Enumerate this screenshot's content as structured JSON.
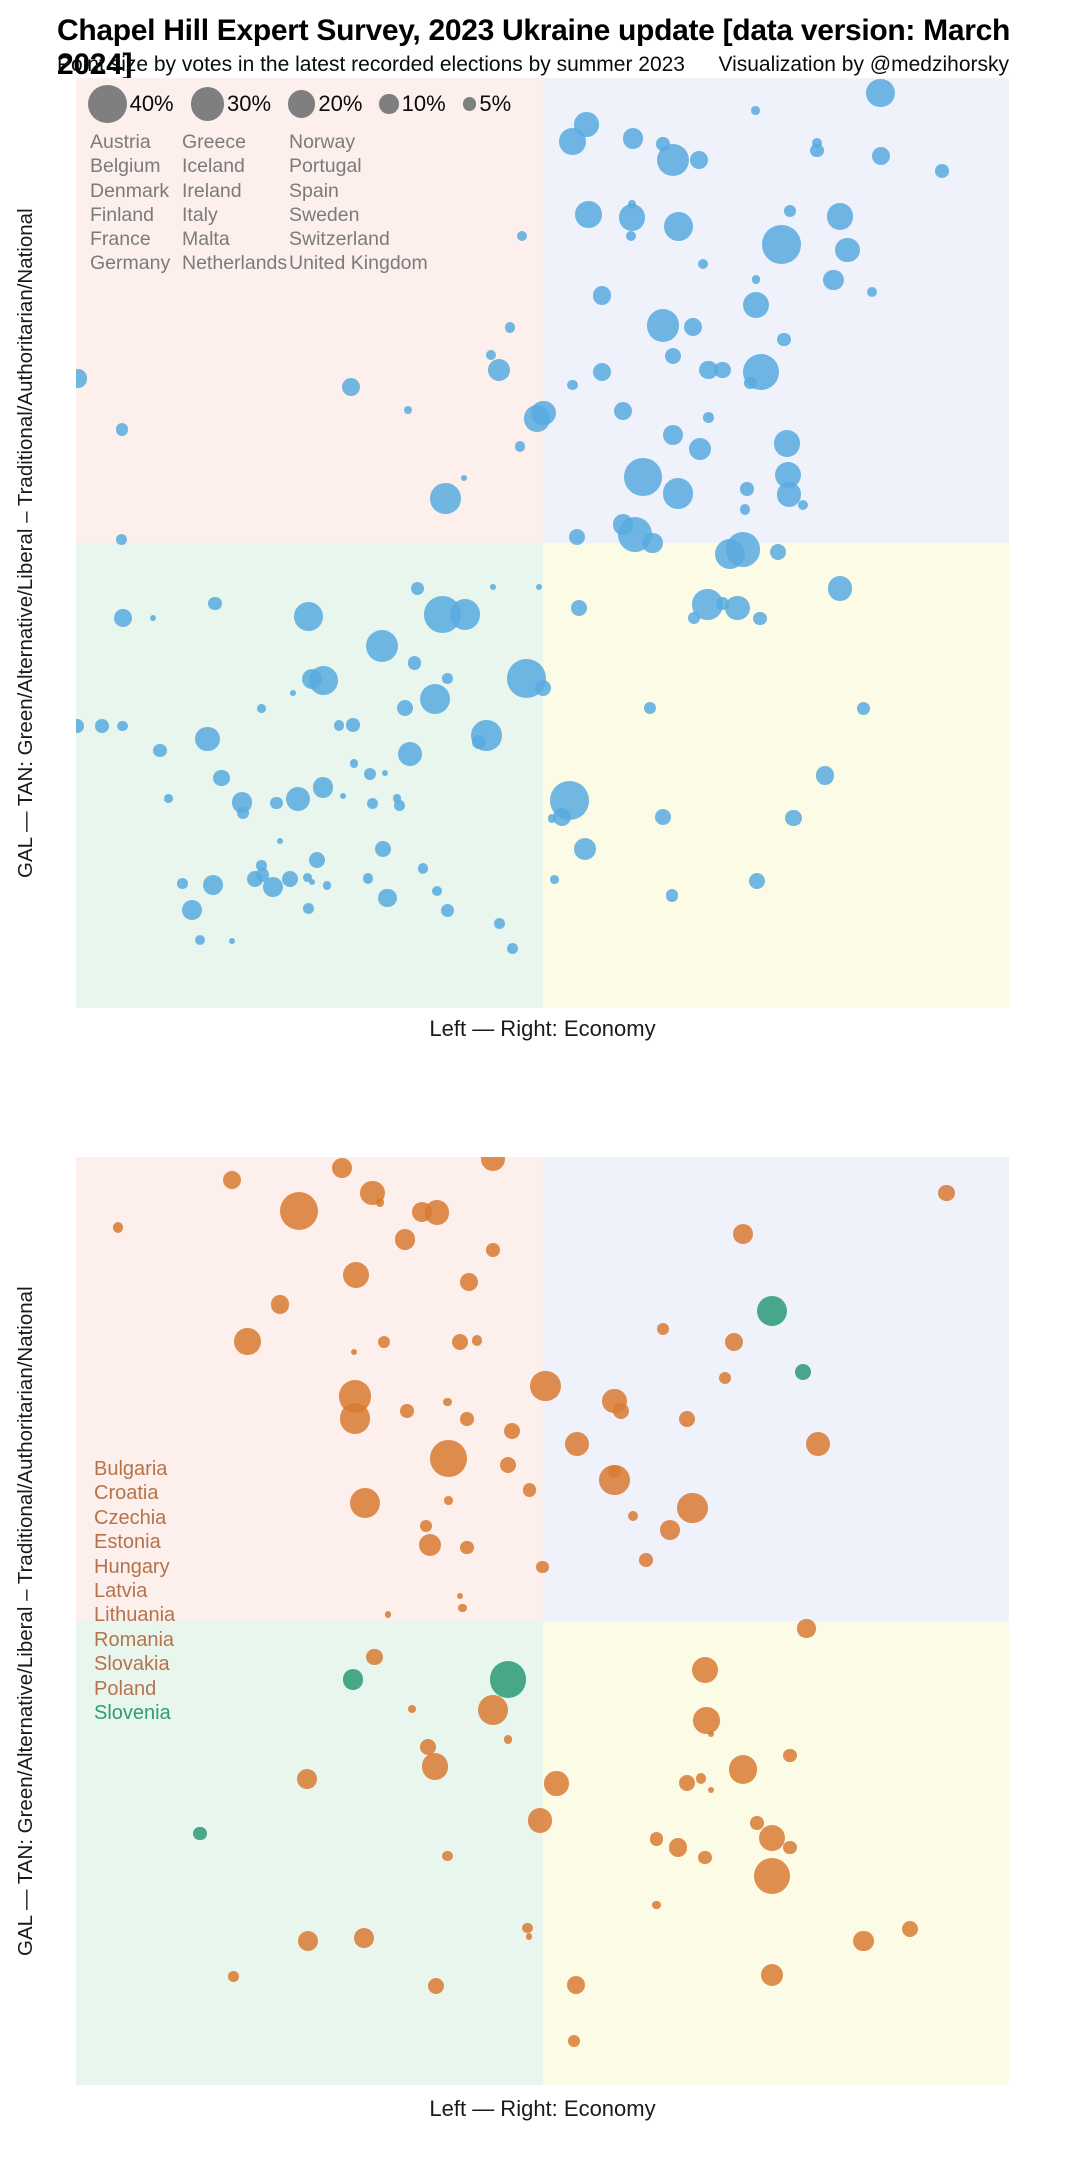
{
  "header": {
    "title": "Chapel Hill Expert Survey, 2023 Ukraine update [data version: March 2024]",
    "subtitle": "Point size by votes in the latest recorded elections by summer 2023",
    "credit": "Visualization by @medzihorsky"
  },
  "axes": {
    "x_label": "Left — Right: Economy",
    "y_label": "GAL — TAN: Green/Alternative/Liberal – Traditional/Authoritarian/National",
    "x_range": [
      0,
      10
    ],
    "y_range": [
      0,
      10
    ]
  },
  "size_legend": {
    "items": [
      {
        "label": "40%",
        "value": 40
      },
      {
        "label": "30%",
        "value": 30
      },
      {
        "label": "20%",
        "value": 20
      },
      {
        "label": "10%",
        "value": 10
      },
      {
        "label": "5%",
        "value": 5
      }
    ]
  },
  "quadrant_colors": {
    "top_left": "#fcefec",
    "top_right": "#eff1fb",
    "bottom_left": "#e9f6ee",
    "bottom_right": "#fbfbe6"
  },
  "chart_data": [
    {
      "type": "scatter",
      "panel": "top",
      "xlabel": "Left — Right: Economy",
      "ylabel": "GAL — TAN: Green/Alternative/Liberal – Traditional/Authoritarian/National",
      "x_range": [
        0,
        10
      ],
      "y_range": [
        0,
        10
      ],
      "size_meaning": "vote share percent in latest national election",
      "point_color": "#58aadf",
      "countries": [
        "Austria",
        "Belgium",
        "Denmark",
        "Finland",
        "France",
        "Germany",
        "Greece",
        "Iceland",
        "Ireland",
        "Italy",
        "Malta",
        "Netherlands",
        "Norway",
        "Portugal",
        "Spain",
        "Sweden",
        "Switzerland",
        "United Kingdom"
      ],
      "points": [
        [
          0.02,
          6.77,
          9
        ],
        [
          0.49,
          6.22,
          4
        ],
        [
          4.78,
          8.3,
          3
        ],
        [
          4.65,
          7.32,
          3
        ],
        [
          4.45,
          7.02,
          3
        ],
        [
          4.53,
          6.86,
          13
        ],
        [
          2.95,
          6.68,
          9
        ],
        [
          3.56,
          6.43,
          2
        ],
        [
          4.94,
          6.34,
          19
        ],
        [
          4.76,
          6.04,
          3
        ],
        [
          4.16,
          5.7,
          1
        ],
        [
          3.96,
          5.48,
          25
        ],
        [
          0.49,
          5.04,
          3
        ],
        [
          8.62,
          9.84,
          22
        ],
        [
          7.28,
          9.65,
          2
        ],
        [
          5.47,
          9.5,
          16
        ],
        [
          5.32,
          9.32,
          19
        ],
        [
          5.97,
          9.35,
          11
        ],
        [
          6.29,
          9.29,
          5
        ],
        [
          6.4,
          9.12,
          28
        ],
        [
          6.68,
          9.12,
          9
        ],
        [
          7.94,
          9.3,
          3
        ],
        [
          7.94,
          9.22,
          5
        ],
        [
          8.63,
          9.16,
          9
        ],
        [
          9.28,
          9.0,
          5
        ],
        [
          5.49,
          8.53,
          19
        ],
        [
          5.96,
          8.64,
          2
        ],
        [
          5.96,
          8.5,
          19
        ],
        [
          5.95,
          8.3,
          3
        ],
        [
          6.46,
          8.4,
          22
        ],
        [
          7.65,
          8.57,
          4
        ],
        [
          8.19,
          8.51,
          19
        ],
        [
          7.56,
          8.21,
          40
        ],
        [
          8.27,
          8.15,
          16
        ],
        [
          6.72,
          8.0,
          3
        ],
        [
          7.29,
          7.83,
          2
        ],
        [
          8.12,
          7.83,
          11
        ],
        [
          8.53,
          7.7,
          3
        ],
        [
          5.64,
          7.66,
          9
        ],
        [
          7.29,
          7.56,
          19
        ],
        [
          6.29,
          7.34,
          28
        ],
        [
          6.61,
          7.32,
          9
        ],
        [
          7.59,
          7.19,
          5
        ],
        [
          6.4,
          7.01,
          7
        ],
        [
          6.78,
          6.86,
          9
        ],
        [
          6.93,
          6.86,
          7
        ],
        [
          7.34,
          6.84,
          36
        ],
        [
          7.23,
          6.72,
          4
        ],
        [
          5.64,
          6.84,
          9
        ],
        [
          5.32,
          6.7,
          3
        ],
        [
          5.01,
          6.4,
          16
        ],
        [
          5.86,
          6.42,
          9
        ],
        [
          6.78,
          6.35,
          3
        ],
        [
          6.4,
          6.16,
          11
        ],
        [
          6.69,
          6.01,
          13
        ],
        [
          7.62,
          6.07,
          19
        ],
        [
          7.63,
          5.73,
          19
        ],
        [
          7.64,
          5.52,
          16
        ],
        [
          7.79,
          5.41,
          3
        ],
        [
          7.19,
          5.58,
          5
        ],
        [
          7.17,
          5.36,
          3
        ],
        [
          6.08,
          5.71,
          38
        ],
        [
          6.45,
          5.53,
          25
        ],
        [
          5.99,
          5.09,
          32
        ],
        [
          5.86,
          5.2,
          11
        ],
        [
          5.37,
          5.06,
          7
        ],
        [
          6.18,
          5.0,
          11
        ],
        [
          7.01,
          4.88,
          25
        ],
        [
          7.15,
          4.93,
          32
        ],
        [
          7.52,
          4.9,
          7
        ],
        [
          1.49,
          4.35,
          5
        ],
        [
          0.5,
          4.19,
          9
        ],
        [
          0.83,
          4.19,
          1
        ],
        [
          2.49,
          4.21,
          22
        ],
        [
          3.66,
          4.51,
          5
        ],
        [
          4.47,
          4.53,
          1
        ],
        [
          4.96,
          4.53,
          1
        ],
        [
          3.93,
          4.23,
          36
        ],
        [
          4.17,
          4.23,
          25
        ],
        [
          3.28,
          3.89,
          28
        ],
        [
          3.63,
          3.71,
          5
        ],
        [
          3.98,
          3.54,
          3
        ],
        [
          2.53,
          3.54,
          11
        ],
        [
          2.65,
          3.52,
          22
        ],
        [
          2.33,
          3.39,
          1
        ],
        [
          3.85,
          3.32,
          25
        ],
        [
          3.53,
          3.23,
          7
        ],
        [
          4.83,
          3.54,
          40
        ],
        [
          5.01,
          3.44,
          7
        ],
        [
          1.99,
          3.22,
          2
        ],
        [
          0.01,
          3.03,
          5
        ],
        [
          0.28,
          3.03,
          5
        ],
        [
          0.5,
          3.03,
          3
        ],
        [
          1.41,
          2.89,
          16
        ],
        [
          2.82,
          3.04,
          3
        ],
        [
          2.97,
          3.04,
          5
        ],
        [
          4.4,
          2.93,
          25
        ],
        [
          4.32,
          2.86,
          5
        ],
        [
          3.58,
          2.73,
          16
        ],
        [
          0.9,
          2.77,
          5
        ],
        [
          1.56,
          2.47,
          7
        ],
        [
          2.98,
          2.63,
          2
        ],
        [
          3.15,
          2.52,
          4
        ],
        [
          3.31,
          2.53,
          1
        ],
        [
          0.99,
          2.25,
          2
        ],
        [
          1.78,
          2.21,
          11
        ],
        [
          1.79,
          2.1,
          4
        ],
        [
          2.15,
          2.2,
          4
        ],
        [
          2.38,
          2.25,
          16
        ],
        [
          2.65,
          2.37,
          11
        ],
        [
          2.86,
          2.28,
          1
        ],
        [
          3.18,
          2.2,
          3
        ],
        [
          3.44,
          2.25,
          2
        ],
        [
          3.47,
          2.18,
          3
        ],
        [
          2.19,
          1.8,
          1
        ],
        [
          3.29,
          1.71,
          7
        ],
        [
          2.58,
          1.59,
          7
        ],
        [
          1.99,
          1.53,
          3
        ],
        [
          2.0,
          1.43,
          5
        ],
        [
          1.92,
          1.39,
          7
        ],
        [
          2.11,
          1.3,
          11
        ],
        [
          2.29,
          1.39,
          7
        ],
        [
          2.48,
          1.4,
          2
        ],
        [
          2.53,
          1.35,
          1
        ],
        [
          2.69,
          1.32,
          2
        ],
        [
          1.14,
          1.34,
          3
        ],
        [
          1.47,
          1.32,
          11
        ],
        [
          1.24,
          1.05,
          11
        ],
        [
          2.49,
          1.07,
          3
        ],
        [
          3.13,
          1.39,
          3
        ],
        [
          3.34,
          1.18,
          9
        ],
        [
          3.72,
          1.5,
          3
        ],
        [
          3.87,
          1.26,
          3
        ],
        [
          3.98,
          1.05,
          5
        ],
        [
          1.33,
          0.73,
          3
        ],
        [
          1.67,
          0.72,
          1
        ],
        [
          4.54,
          0.91,
          3
        ],
        [
          4.68,
          0.64,
          3
        ],
        [
          5.39,
          4.3,
          7
        ],
        [
          6.77,
          4.34,
          25
        ],
        [
          6.93,
          4.35,
          5
        ],
        [
          7.09,
          4.3,
          16
        ],
        [
          7.33,
          4.19,
          5
        ],
        [
          6.62,
          4.19,
          4
        ],
        [
          8.19,
          4.51,
          16
        ],
        [
          6.15,
          3.23,
          4
        ],
        [
          8.44,
          3.22,
          5
        ],
        [
          8.03,
          2.5,
          9
        ],
        [
          5.29,
          2.23,
          40
        ],
        [
          5.21,
          2.05,
          9
        ],
        [
          5.1,
          2.04,
          2
        ],
        [
          6.29,
          2.05,
          7
        ],
        [
          7.69,
          2.04,
          7
        ],
        [
          5.46,
          1.71,
          13
        ],
        [
          5.13,
          1.38,
          2
        ],
        [
          7.3,
          1.37,
          7
        ],
        [
          6.39,
          1.21,
          4
        ]
      ]
    },
    {
      "type": "scatter",
      "panel": "bottom",
      "xlabel": "Left — Right: Economy",
      "ylabel": "GAL — TAN: Green/Alternative/Liberal – Traditional/Authoritarian/National",
      "x_range": [
        0,
        10
      ],
      "y_range": [
        0,
        10
      ],
      "size_meaning": "vote share percent in latest national election",
      "point_color_orange": "#d87a33",
      "point_color_green": "#2a9a77",
      "countries": [
        {
          "label": "Bulgaria",
          "group": "orange"
        },
        {
          "label": "Croatia",
          "group": "orange"
        },
        {
          "label": "Czechia",
          "group": "orange"
        },
        {
          "label": "Estonia",
          "group": "orange"
        },
        {
          "label": "Hungary",
          "group": "orange"
        },
        {
          "label": "Latvia",
          "group": "orange"
        },
        {
          "label": "Lithuania",
          "group": "orange"
        },
        {
          "label": "Romania",
          "group": "orange"
        },
        {
          "label": "Slovakia",
          "group": "orange"
        },
        {
          "label": "Poland",
          "group": "orange"
        },
        {
          "label": "Slovenia",
          "group": "green"
        }
      ],
      "points_orange": [
        [
          4.47,
          9.98,
          16
        ],
        [
          2.85,
          9.88,
          11
        ],
        [
          1.67,
          9.75,
          9
        ],
        [
          2.39,
          9.42,
          40
        ],
        [
          3.18,
          9.61,
          16
        ],
        [
          3.26,
          9.51,
          2
        ],
        [
          3.71,
          9.41,
          11
        ],
        [
          3.87,
          9.4,
          16
        ],
        [
          0.45,
          9.24,
          3
        ],
        [
          3.53,
          9.11,
          11
        ],
        [
          4.47,
          9.0,
          5
        ],
        [
          3.0,
          8.73,
          19
        ],
        [
          4.21,
          8.65,
          9
        ],
        [
          2.19,
          8.41,
          9
        ],
        [
          1.84,
          8.01,
          19
        ],
        [
          4.12,
          8.01,
          7
        ],
        [
          4.3,
          8.02,
          3
        ],
        [
          3.3,
          8.01,
          4
        ],
        [
          2.98,
          7.9,
          1
        ],
        [
          2.99,
          7.42,
          28
        ],
        [
          2.99,
          7.18,
          25
        ],
        [
          3.98,
          7.36,
          2
        ],
        [
          3.55,
          7.26,
          5
        ],
        [
          4.19,
          7.18,
          5
        ],
        [
          4.67,
          7.05,
          7
        ],
        [
          3.99,
          6.75,
          36
        ],
        [
          4.63,
          6.68,
          7
        ],
        [
          4.86,
          6.41,
          5
        ],
        [
          3.1,
          6.27,
          25
        ],
        [
          3.99,
          6.3,
          2
        ],
        [
          3.75,
          6.02,
          4
        ],
        [
          3.79,
          5.82,
          13
        ],
        [
          4.19,
          5.79,
          5
        ],
        [
          5.0,
          5.58,
          4
        ],
        [
          4.12,
          5.27,
          1
        ],
        [
          4.14,
          5.14,
          2
        ],
        [
          3.34,
          5.07,
          1
        ],
        [
          9.33,
          9.61,
          7
        ],
        [
          7.15,
          9.17,
          11
        ],
        [
          6.29,
          8.15,
          4
        ],
        [
          7.05,
          8.01,
          9
        ],
        [
          6.96,
          7.62,
          4
        ],
        [
          5.03,
          7.53,
          25
        ],
        [
          5.77,
          7.37,
          16
        ],
        [
          5.84,
          7.26,
          7
        ],
        [
          6.55,
          7.18,
          7
        ],
        [
          5.37,
          6.91,
          16
        ],
        [
          7.95,
          6.91,
          16
        ],
        [
          5.77,
          6.61,
          5
        ],
        [
          5.77,
          6.52,
          25
        ],
        [
          6.61,
          6.22,
          25
        ],
        [
          5.97,
          6.13,
          3
        ],
        [
          6.37,
          5.98,
          11
        ],
        [
          6.11,
          5.66,
          5
        ],
        [
          3.2,
          4.61,
          7
        ],
        [
          4.47,
          4.04,
          25
        ],
        [
          3.6,
          4.05,
          2
        ],
        [
          4.63,
          3.72,
          2
        ],
        [
          3.77,
          3.64,
          7
        ],
        [
          3.85,
          3.43,
          19
        ],
        [
          2.48,
          3.3,
          11
        ],
        [
          3.98,
          2.47,
          3
        ],
        [
          2.49,
          1.55,
          11
        ],
        [
          3.09,
          1.58,
          11
        ],
        [
          4.84,
          1.69,
          3
        ],
        [
          4.86,
          1.6,
          1
        ],
        [
          1.69,
          1.17,
          3
        ],
        [
          3.86,
          1.07,
          7
        ],
        [
          7.83,
          4.92,
          9
        ],
        [
          6.74,
          4.47,
          19
        ],
        [
          6.76,
          3.93,
          19
        ],
        [
          6.81,
          3.78,
          1
        ],
        [
          7.65,
          3.55,
          5
        ],
        [
          7.15,
          3.4,
          22
        ],
        [
          5.15,
          3.25,
          16
        ],
        [
          6.55,
          3.25,
          7
        ],
        [
          6.7,
          3.3,
          3
        ],
        [
          6.81,
          3.18,
          1
        ],
        [
          4.97,
          2.85,
          16
        ],
        [
          7.3,
          2.82,
          5
        ],
        [
          7.46,
          2.66,
          19
        ],
        [
          7.65,
          2.56,
          5
        ],
        [
          6.22,
          2.65,
          5
        ],
        [
          6.45,
          2.56,
          9
        ],
        [
          6.74,
          2.45,
          5
        ],
        [
          7.46,
          2.25,
          36
        ],
        [
          6.22,
          1.94,
          2
        ],
        [
          8.44,
          1.55,
          11
        ],
        [
          8.94,
          1.68,
          7
        ],
        [
          7.46,
          1.18,
          13
        ],
        [
          5.36,
          1.08,
          9
        ],
        [
          5.34,
          0.47,
          4
        ]
      ],
      "points_green": [
        [
          7.46,
          8.34,
          25
        ],
        [
          7.79,
          7.68,
          7
        ],
        [
          2.97,
          4.37,
          11
        ],
        [
          4.63,
          4.37,
          36
        ],
        [
          1.33,
          2.71,
          5
        ]
      ]
    }
  ]
}
